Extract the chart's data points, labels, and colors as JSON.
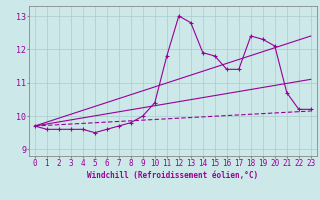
{
  "xlabel": "Windchill (Refroidissement éolien,°C)",
  "bg_color": "#cce8e8",
  "line_color": "#990099",
  "grid_color": "#aacccc",
  "spine_color": "#888888",
  "xlim": [
    -0.5,
    23.5
  ],
  "ylim": [
    8.8,
    13.3
  ],
  "yticks": [
    9,
    10,
    11,
    12,
    13
  ],
  "xticks": [
    0,
    1,
    2,
    3,
    4,
    5,
    6,
    7,
    8,
    9,
    10,
    11,
    12,
    13,
    14,
    15,
    16,
    17,
    18,
    19,
    20,
    21,
    22,
    23
  ],
  "line1_x": [
    0,
    1,
    2,
    3,
    4,
    5,
    6,
    7,
    8,
    9,
    10,
    11,
    12,
    13,
    14,
    15,
    16,
    17,
    18,
    19,
    20,
    21,
    22,
    23
  ],
  "line1_y": [
    9.7,
    9.6,
    9.6,
    9.6,
    9.6,
    9.5,
    9.6,
    9.7,
    9.8,
    10.0,
    10.4,
    11.8,
    13.0,
    12.8,
    11.9,
    11.8,
    11.4,
    11.4,
    12.4,
    12.3,
    12.1,
    10.7,
    10.2,
    10.2
  ],
  "line2_x": [
    0,
    23
  ],
  "line2_y": [
    9.7,
    12.4
  ],
  "line3_x": [
    0,
    23
  ],
  "line3_y": [
    9.7,
    11.1
  ],
  "line4_x": [
    0,
    23
  ],
  "line4_y": [
    9.7,
    10.15
  ],
  "tick_fontsize": 5.5,
  "xlabel_fontsize": 5.5
}
